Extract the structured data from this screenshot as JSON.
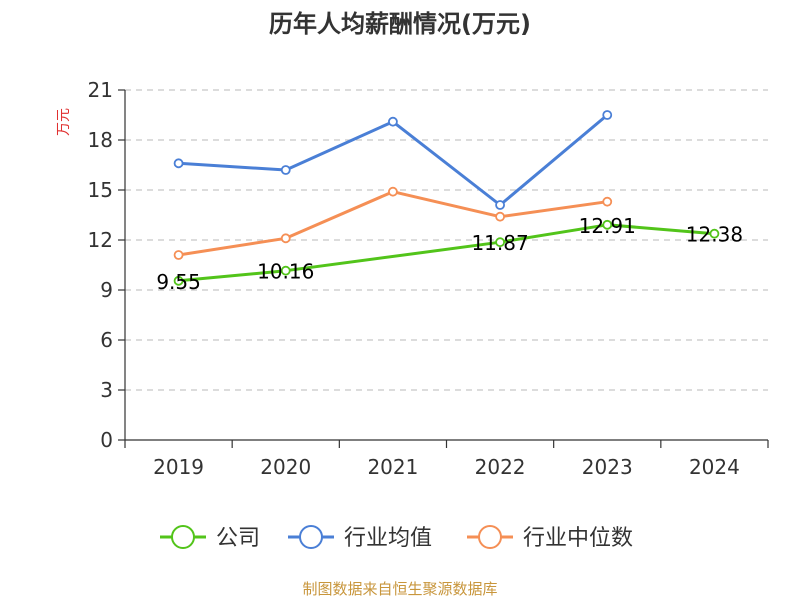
{
  "chart_data": {
    "type": "line",
    "title": "历年人均薪酬情况(万元)",
    "ylabel": "万元",
    "ylim": [
      0,
      21
    ],
    "yticks": [
      0,
      3,
      6,
      9,
      12,
      15,
      18,
      21
    ],
    "grid": true,
    "legend_position": "bottom",
    "categories": [
      "2019",
      "2020",
      "2021",
      "2022",
      "2023",
      "2024"
    ],
    "series": [
      {
        "name": "公司",
        "color": "#52c41a",
        "values": [
          9.55,
          10.16,
          null,
          11.87,
          12.91,
          12.38
        ],
        "labels": [
          "9.55",
          "10.16",
          null,
          "11.87",
          "12.91",
          "12.38"
        ]
      },
      {
        "name": "行业均值",
        "color": "#4a7fd6",
        "values": [
          16.6,
          16.2,
          19.1,
          14.1,
          19.5,
          null
        ]
      },
      {
        "name": "行业中位数",
        "color": "#f58f55",
        "values": [
          11.1,
          12.1,
          14.9,
          13.4,
          14.3,
          null
        ]
      }
    ]
  },
  "source": "制图数据来自恒生聚源数据库"
}
